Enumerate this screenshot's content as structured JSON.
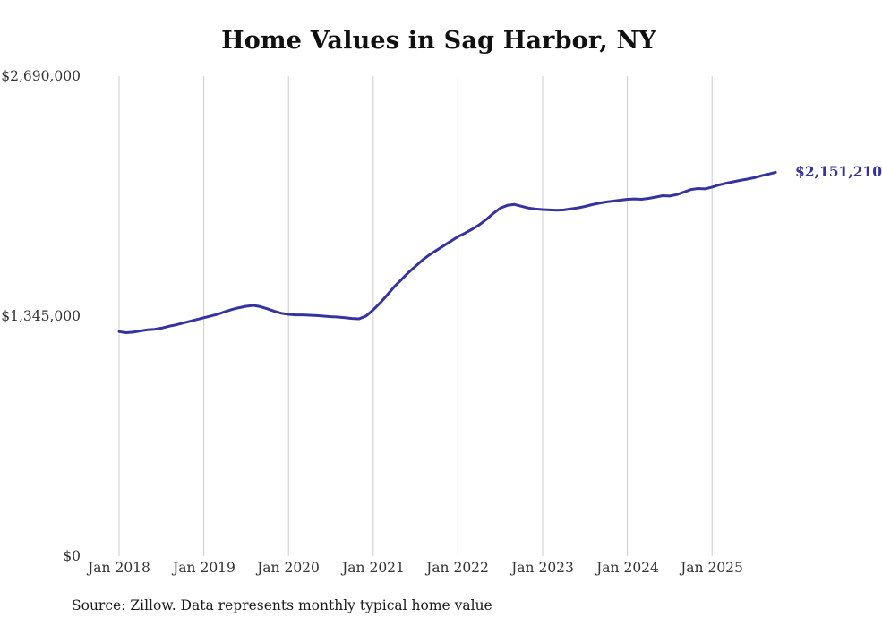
{
  "title": "Home Values in Sag Harbor, NY",
  "source_note": "Source: Zillow. Data represents monthly typical home value",
  "colors": {
    "line": "#35349E",
    "grid": "#cccccc",
    "axis_text": "#333333",
    "title_text": "#111111"
  },
  "chart_data": {
    "type": "line",
    "title": "Home Values in Sag Harbor, NY",
    "ylabel": "",
    "xlabel": "",
    "ylim": [
      0,
      2690000
    ],
    "grid": "vertical-only",
    "legend": "none",
    "y_ticks": [
      {
        "label": "$2,690,000",
        "value": 2690000
      },
      {
        "label": "$1,345,000",
        "value": 1345000
      },
      {
        "label": "$0",
        "value": 0
      }
    ],
    "x_tick_labels": [
      "Jan 2018",
      "Jan 2019",
      "Jan 2020",
      "Jan 2021",
      "Jan 2022",
      "Jan 2023",
      "Jan 2024",
      "Jan 2025"
    ],
    "latest_label": "$2,151,210",
    "latest_value": 2151210,
    "series": [
      {
        "name": "Typical home value",
        "x": [
          "2018-01",
          "2018-02",
          "2018-03",
          "2018-04",
          "2018-05",
          "2018-06",
          "2018-07",
          "2018-08",
          "2018-09",
          "2018-10",
          "2018-11",
          "2018-12",
          "2019-01",
          "2019-02",
          "2019-03",
          "2019-04",
          "2019-05",
          "2019-06",
          "2019-07",
          "2019-08",
          "2019-09",
          "2019-10",
          "2019-11",
          "2019-12",
          "2020-01",
          "2020-02",
          "2020-03",
          "2020-04",
          "2020-05",
          "2020-06",
          "2020-07",
          "2020-08",
          "2020-09",
          "2020-10",
          "2020-11",
          "2020-12",
          "2021-01",
          "2021-02",
          "2021-03",
          "2021-04",
          "2021-05",
          "2021-06",
          "2021-07",
          "2021-08",
          "2021-09",
          "2021-10",
          "2021-11",
          "2021-12",
          "2022-01",
          "2022-02",
          "2022-03",
          "2022-04",
          "2022-05",
          "2022-06",
          "2022-07",
          "2022-08",
          "2022-09",
          "2022-10",
          "2022-11",
          "2022-12",
          "2023-01",
          "2023-02",
          "2023-03",
          "2023-04",
          "2023-05",
          "2023-06",
          "2023-07",
          "2023-08",
          "2023-09",
          "2023-10",
          "2023-11",
          "2023-12",
          "2024-01",
          "2024-02",
          "2024-03",
          "2024-04",
          "2024-05",
          "2024-06",
          "2024-07",
          "2024-08",
          "2024-09",
          "2024-10",
          "2024-11",
          "2024-12",
          "2025-01",
          "2025-02",
          "2025-03",
          "2025-04",
          "2025-05",
          "2025-06",
          "2025-07",
          "2025-08",
          "2025-09",
          "2025-10"
        ],
        "values": [
          1258000,
          1252000,
          1255000,
          1262000,
          1268000,
          1271000,
          1278000,
          1288000,
          1296000,
          1306000,
          1316000,
          1326000,
          1336000,
          1346000,
          1356000,
          1370000,
          1382000,
          1392000,
          1400000,
          1405000,
          1398000,
          1386000,
          1372000,
          1361000,
          1355000,
          1352000,
          1352000,
          1350000,
          1348000,
          1345000,
          1342000,
          1340000,
          1336000,
          1332000,
          1330000,
          1346000,
          1380000,
          1420000,
          1465000,
          1510000,
          1550000,
          1590000,
          1625000,
          1660000,
          1690000,
          1715000,
          1740000,
          1765000,
          1790000,
          1810000,
          1832000,
          1856000,
          1886000,
          1920000,
          1950000,
          1966000,
          1971000,
          1961000,
          1951000,
          1945000,
          1942000,
          1940000,
          1938000,
          1940000,
          1946000,
          1952000,
          1960000,
          1970000,
          1978000,
          1985000,
          1990000,
          1995000,
          2000000,
          2002000,
          2000000,
          2005000,
          2012000,
          2020000,
          2018000,
          2026000,
          2040000,
          2054000,
          2060000,
          2058000,
          2068000,
          2080000,
          2090000,
          2098000,
          2106000,
          2113000,
          2121000,
          2132000,
          2141000,
          2151210
        ]
      }
    ]
  }
}
